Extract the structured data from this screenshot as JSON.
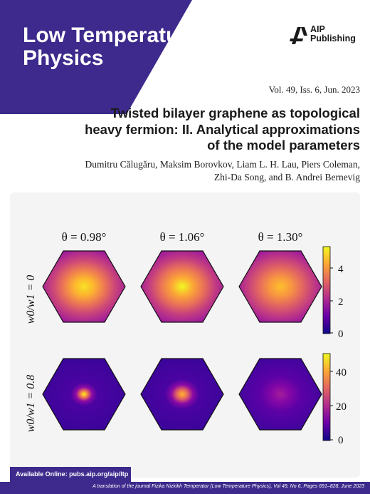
{
  "journal": {
    "line1": "Low Temperature",
    "line2": "Physics"
  },
  "publisher": {
    "line1": "AIP",
    "line2": "Publishing"
  },
  "issue": "Vol. 49, Iss. 6, Jun. 2023",
  "article": {
    "title_lines": [
      "Twisted bilayer graphene as topological",
      "heavy fermion: II. Analytical approximations",
      "of the model parameters"
    ],
    "author_lines": [
      "Dumitru Călugăru, Maksim Borovkov, Liam L. H. Lau, Piers Coleman,",
      "Zhi-Da Song, and B. Andrei Bernevig"
    ]
  },
  "figure": {
    "column_labels": [
      "θ = 0.98°",
      "θ = 1.06°",
      "θ = 1.30°"
    ],
    "row_labels": [
      "w0/w1 = 0",
      "w0/w1 = 0.8"
    ],
    "colorbar_top_ticks": [
      "4",
      "2",
      "0"
    ],
    "colorbar_bottom_ticks": [
      "40",
      "20",
      "0"
    ],
    "colormap": [
      "#0d0887",
      "#6a00a8",
      "#b12a90",
      "#e16462",
      "#fca636",
      "#f0f921"
    ]
  },
  "available_online": "Available Online: pubs.aip.org/aip/ltp",
  "footer": "A translation of the journal Fizika Nizkikh Temperatur (Low Temperature Physics), Vol 49, No 6, Pages 691–828, June 2023",
  "colors": {
    "brand_purple": "#3d2a8c"
  }
}
